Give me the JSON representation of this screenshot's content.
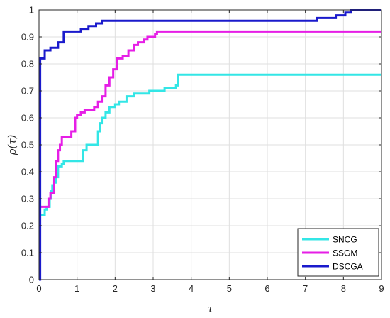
{
  "chart_data": {
    "type": "line",
    "title": "",
    "xlabel": "τ",
    "ylabel": "ρ(τ)",
    "xlim": [
      0,
      9
    ],
    "ylim": [
      0,
      1
    ],
    "xticks": [
      "0",
      "1",
      "2",
      "3",
      "4",
      "5",
      "6",
      "7",
      "8",
      "9"
    ],
    "yticks": [
      "0",
      "0.1",
      "0.2",
      "0.3",
      "0.4",
      "0.5",
      "0.6",
      "0.7",
      "0.8",
      "0.9",
      "1"
    ],
    "grid": true,
    "legend_position": "bottom-right",
    "step": true,
    "series": [
      {
        "name": "SNCG",
        "color": "#33e6e6",
        "x": [
          0.0,
          0.15,
          0.2,
          0.28,
          0.32,
          0.35,
          0.4,
          0.45,
          0.5,
          0.6,
          0.65,
          0.75,
          1.15,
          1.25,
          1.55,
          1.6,
          1.65,
          1.75,
          1.85,
          2.0,
          2.1,
          2.3,
          2.5,
          2.9,
          3.0,
          3.3,
          3.6,
          3.65,
          9.0
        ],
        "y": [
          0.24,
          0.26,
          0.27,
          0.3,
          0.33,
          0.35,
          0.36,
          0.38,
          0.42,
          0.43,
          0.44,
          0.44,
          0.48,
          0.5,
          0.55,
          0.58,
          0.6,
          0.62,
          0.64,
          0.65,
          0.66,
          0.68,
          0.69,
          0.7,
          0.7,
          0.71,
          0.72,
          0.76,
          0.76
        ]
      },
      {
        "name": "SSGM",
        "color": "#e61ee6",
        "x": [
          0.0,
          0.25,
          0.3,
          0.4,
          0.45,
          0.5,
          0.55,
          0.6,
          0.85,
          0.95,
          1.0,
          1.1,
          1.2,
          1.45,
          1.55,
          1.65,
          1.75,
          1.85,
          1.95,
          2.05,
          2.2,
          2.35,
          2.5,
          2.6,
          2.75,
          2.85,
          3.05,
          3.1,
          9.0
        ],
        "y": [
          0.27,
          0.3,
          0.32,
          0.38,
          0.44,
          0.48,
          0.5,
          0.53,
          0.55,
          0.6,
          0.61,
          0.62,
          0.63,
          0.64,
          0.66,
          0.68,
          0.72,
          0.75,
          0.78,
          0.82,
          0.83,
          0.85,
          0.87,
          0.88,
          0.89,
          0.9,
          0.91,
          0.92,
          0.92
        ]
      },
      {
        "name": "DSCGA",
        "color": "#1a1acc",
        "x": [
          0.0,
          0.03,
          0.15,
          0.3,
          0.5,
          0.65,
          0.95,
          1.1,
          1.3,
          1.5,
          1.65,
          1.8,
          7.15,
          7.3,
          7.8,
          8.05,
          8.2,
          9.0
        ],
        "y": [
          0.0,
          0.82,
          0.85,
          0.86,
          0.88,
          0.92,
          0.92,
          0.93,
          0.94,
          0.95,
          0.96,
          0.96,
          0.96,
          0.97,
          0.98,
          0.99,
          1.0,
          1.0
        ]
      }
    ]
  }
}
